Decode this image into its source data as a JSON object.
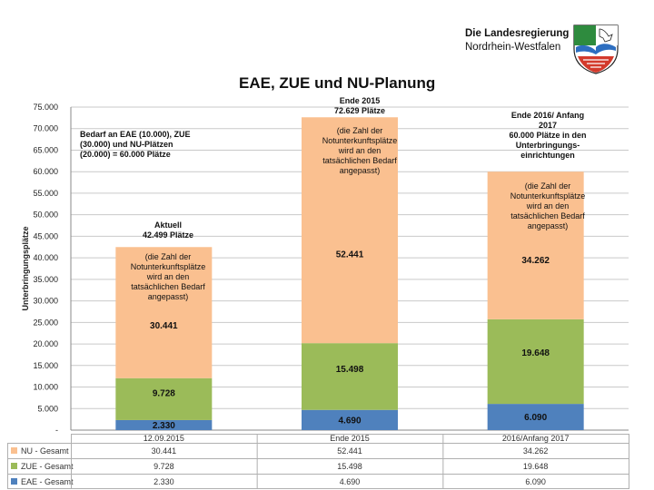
{
  "header": {
    "gov_line1": "Die Landesregierung",
    "gov_line2": "Nordrhein-Westfalen"
  },
  "slide_title": "EAE, ZUE und NU-Planung",
  "notes": {
    "demand": [
      "Bedarf an EAE (10.000), ZUE",
      "(30.000) und NU-Plätzen",
      "(20.000) = 60.000 Plätze"
    ],
    "end2015_top": [
      "Ende 2015",
      "72.629 Plätze"
    ],
    "end2015_note": [
      "(die Zahl der",
      "Notunterkunftsplätze",
      "wird an den",
      "tatsächlichen Bedarf",
      "angepasst)"
    ],
    "end2016_top": [
      "Ende 2016/ Anfang",
      "2017",
      "60.000 Plätze in den",
      "Unterbringungs-",
      "einrichtungen"
    ],
    "end2016_note": [
      "(die Zahl der",
      "Notunterkunftsplätze",
      "wird an den",
      "tatsächlichen Bedarf",
      "angepasst)"
    ],
    "current_top": [
      "Aktuell",
      "42.499 Plätze"
    ],
    "current_note": [
      "(die Zahl der",
      "Notunterkunftsplätze",
      "wird an den",
      "tatsächlichen Bedarf",
      "angepasst)"
    ]
  },
  "chart_data": {
    "type": "bar",
    "stacked": true,
    "title": "EAE, ZUE und NU-Planung",
    "ylabel": "Unterbringungsplätze",
    "ylim": [
      0,
      75000
    ],
    "y_ticks": [
      "-",
      "5.000",
      "10.000",
      "15.000",
      "20.000",
      "25.000",
      "30.000",
      "35.000",
      "40.000",
      "45.000",
      "50.000",
      "55.000",
      "60.000",
      "65.000",
      "70.000",
      "75.000"
    ],
    "y_tick_values": [
      0,
      5000,
      10000,
      15000,
      20000,
      25000,
      30000,
      35000,
      40000,
      45000,
      50000,
      55000,
      60000,
      65000,
      70000,
      75000
    ],
    "categories": [
      "12.09.2015",
      "Ende 2015",
      "2016/Anfang 2017"
    ],
    "series": [
      {
        "name": "EAE - Gesamt",
        "color": "#4f81bd",
        "values": [
          2330,
          4690,
          6090
        ],
        "labels": [
          "2.330",
          "4.690",
          "6.090"
        ]
      },
      {
        "name": "ZUE - Gesamt",
        "color": "#9bbb59",
        "values": [
          9728,
          15498,
          19648
        ],
        "labels": [
          "9.728",
          "15.498",
          "19.648"
        ]
      },
      {
        "name": "NU - Gesamt",
        "color": "#fac090",
        "values": [
          30441,
          52441,
          34262
        ],
        "labels": [
          "30.441",
          "52.441",
          "34.262"
        ]
      }
    ],
    "table_order": [
      "NU - Gesamt",
      "ZUE - Gesamt",
      "EAE - Gesamt"
    ]
  }
}
